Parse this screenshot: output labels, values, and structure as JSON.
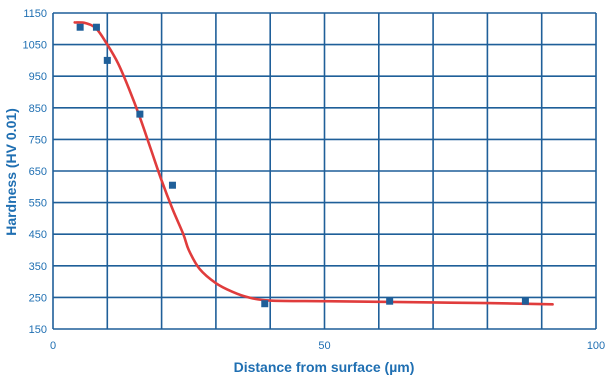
{
  "chart_data": {
    "type": "scatter",
    "title": "",
    "xlabel": "Distance from surface (µm)",
    "ylabel": "Hardness (HV 0.01)",
    "xlim": [
      0,
      100
    ],
    "ylim": [
      150,
      1150
    ],
    "grid": true,
    "x_ticks": [
      0,
      50,
      100
    ],
    "y_ticks": [
      150,
      250,
      350,
      450,
      550,
      650,
      750,
      850,
      950,
      1050,
      1150
    ],
    "x_grid_step": 10,
    "series": [
      {
        "kind": "points",
        "marker": "square",
        "color": "#1f5f99",
        "points": [
          {
            "x": 5,
            "y": 1105
          },
          {
            "x": 8,
            "y": 1105
          },
          {
            "x": 10,
            "y": 1000
          },
          {
            "x": 16,
            "y": 830
          },
          {
            "x": 22,
            "y": 605
          },
          {
            "x": 39,
            "y": 230
          },
          {
            "x": 62,
            "y": 238
          },
          {
            "x": 87,
            "y": 238
          }
        ]
      },
      {
        "kind": "curve",
        "color": "#e03c3c",
        "points": [
          {
            "x": 4,
            "y": 1120
          },
          {
            "x": 6,
            "y": 1118
          },
          {
            "x": 8,
            "y": 1100
          },
          {
            "x": 10,
            "y": 1050
          },
          {
            "x": 12,
            "y": 990
          },
          {
            "x": 14,
            "y": 910
          },
          {
            "x": 16,
            "y": 820
          },
          {
            "x": 18,
            "y": 720
          },
          {
            "x": 20,
            "y": 620
          },
          {
            "x": 22,
            "y": 530
          },
          {
            "x": 24,
            "y": 450
          },
          {
            "x": 25,
            "y": 400
          },
          {
            "x": 27,
            "y": 340
          },
          {
            "x": 30,
            "y": 295
          },
          {
            "x": 33,
            "y": 268
          },
          {
            "x": 36,
            "y": 250
          },
          {
            "x": 40,
            "y": 240
          },
          {
            "x": 50,
            "y": 238
          },
          {
            "x": 60,
            "y": 236
          },
          {
            "x": 70,
            "y": 234
          },
          {
            "x": 80,
            "y": 232
          },
          {
            "x": 92,
            "y": 228
          }
        ]
      }
    ]
  }
}
